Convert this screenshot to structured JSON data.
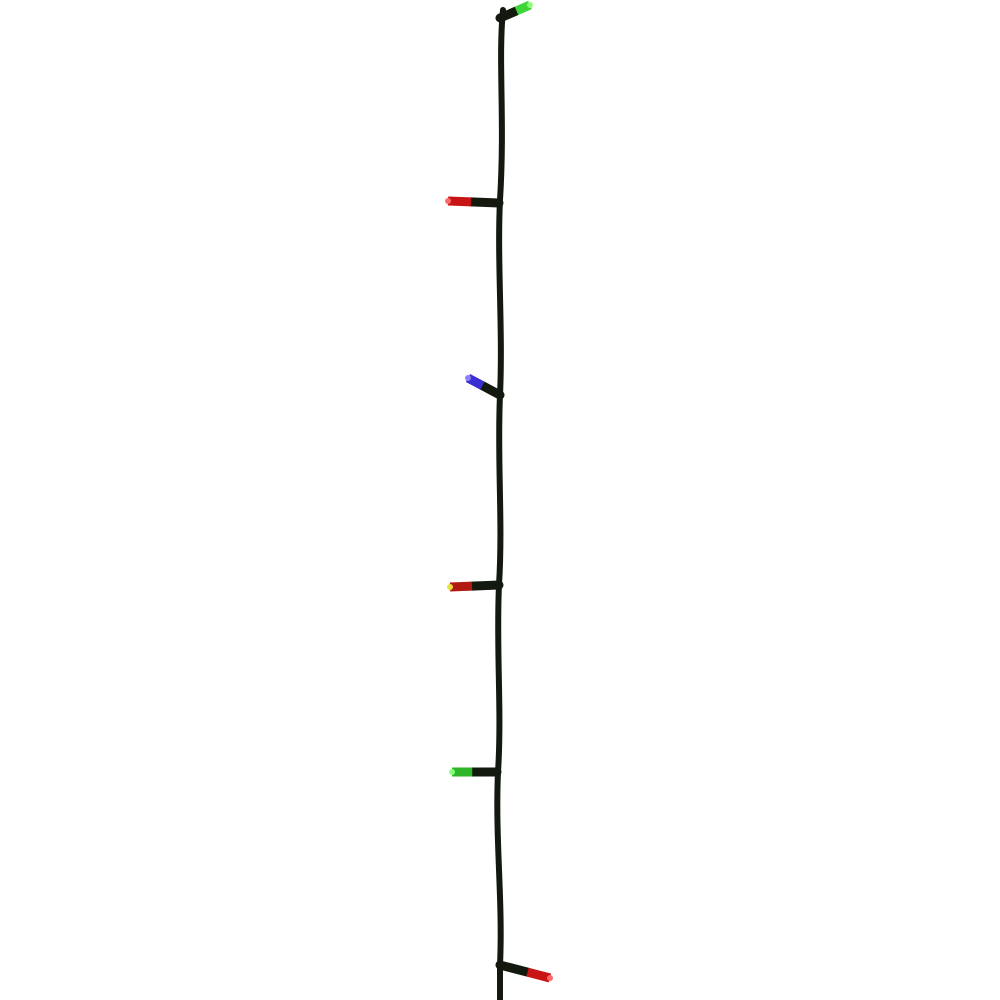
{
  "image": {
    "subject": "led-string-lights",
    "background_color": "#ffffff",
    "wire_color": "#14190f",
    "bulbs": [
      {
        "color": "#3fd43a",
        "tip": "#8cff7a"
      },
      {
        "color": "#c81414",
        "tip": "#ff6a6a"
      },
      {
        "color": "#3a2fd0",
        "tip": "#8a80ff"
      },
      {
        "color": "#b01a10",
        "tip": "#e8e040"
      },
      {
        "color": "#2fb52a",
        "tip": "#8cff7a"
      },
      {
        "color": "#c81414",
        "tip": "#ff6a6a"
      }
    ]
  }
}
